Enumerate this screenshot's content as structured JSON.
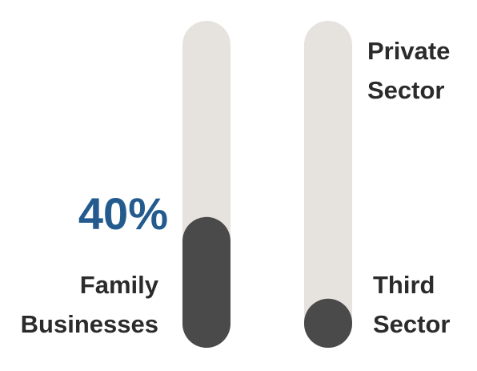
{
  "chart_data": {
    "type": "progress",
    "categories": [
      "Family Businesses",
      "Third Sector"
    ],
    "values": [
      40,
      15
    ],
    "value_labels": [
      "40%",
      null
    ],
    "track_labels": [
      null,
      "Private Sector"
    ],
    "ylim": [
      0,
      100
    ],
    "track_color": "#e6e3df",
    "color": "#4a4a4a",
    "value_label_color": "#245b8f"
  }
}
